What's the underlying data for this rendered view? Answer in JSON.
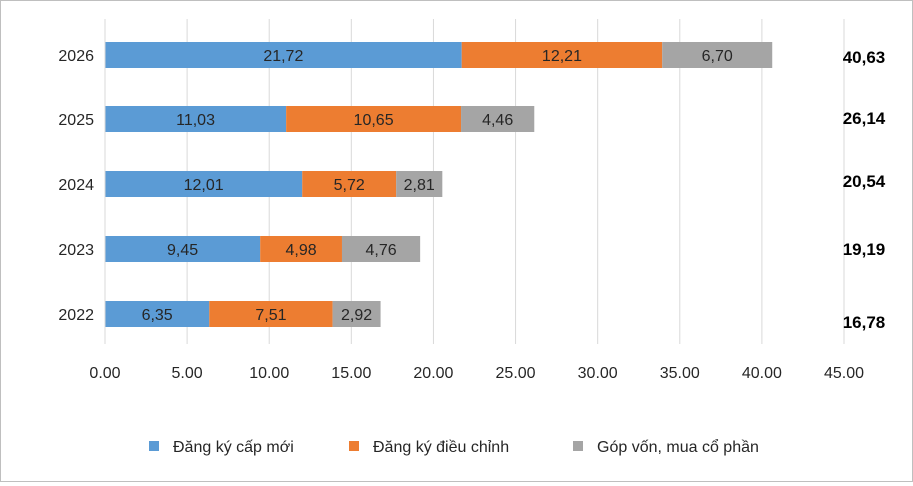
{
  "chart_data": {
    "type": "bar",
    "orientation": "horizontal",
    "stacked": true,
    "categories": [
      "2026",
      "2025",
      "2024",
      "2023",
      "2022"
    ],
    "series": [
      {
        "name": "Đăng ký cấp mới",
        "color": "#5b9bd5",
        "values": [
          21.72,
          11.03,
          12.01,
          9.45,
          6.35
        ],
        "labels": [
          "21,72",
          "11,03",
          "12,01",
          "9,45",
          "6,35"
        ]
      },
      {
        "name": "Đăng ký điều chỉnh",
        "color": "#ed7d31",
        "values": [
          12.21,
          10.65,
          5.72,
          4.98,
          7.51
        ],
        "labels": [
          "12,21",
          "10,65",
          "5,72",
          "4,98",
          "7,51"
        ]
      },
      {
        "name": "Góp vốn, mua cổ phần",
        "color": "#a5a5a5",
        "values": [
          6.7,
          4.46,
          2.81,
          4.76,
          2.92
        ],
        "labels": [
          "6,70",
          "4,46",
          "2,81",
          "4,76",
          "2,92"
        ]
      }
    ],
    "totals": [
      "40,63",
      "26,14",
      "20,54",
      "19,19",
      "16,78"
    ],
    "xlim": [
      0,
      45
    ],
    "xticks": [
      "0.00",
      "5.00",
      "10.00",
      "15.00",
      "20.00",
      "25.00",
      "30.00",
      "35.00",
      "40.00",
      "45.00"
    ],
    "grid": "vertical",
    "legend_position": "bottom"
  }
}
